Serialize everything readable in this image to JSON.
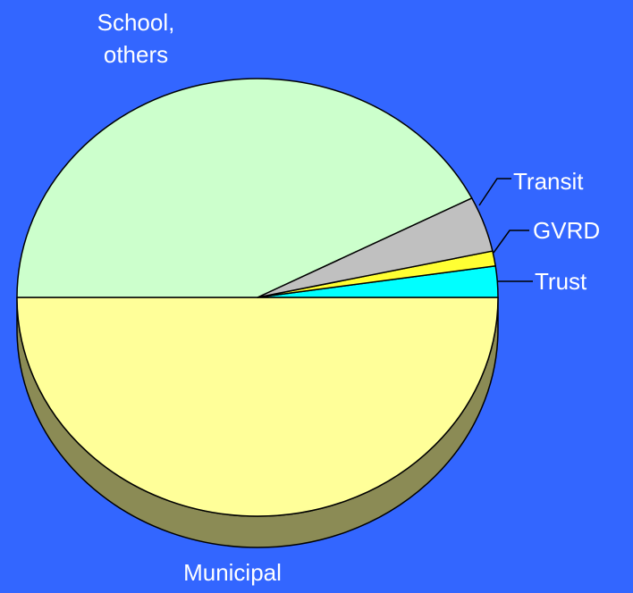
{
  "chart_data": {
    "type": "pie",
    "style": "3d",
    "background": "#3366ff",
    "categories": [
      "Municipal",
      "School, others",
      "Transit",
      "GVRD",
      "Trust"
    ],
    "values": [
      50.0,
      42.5,
      4.1,
      1.1,
      2.3
    ],
    "colors": [
      "#ffff99",
      "#ccffcc",
      "#c0c0c0",
      "#ffff33",
      "#00ffff"
    ],
    "labels": [
      {
        "category": "Municipal",
        "lines": [
          "Municipal"
        ]
      },
      {
        "category": "School, others",
        "lines": [
          "School,",
          "others"
        ]
      },
      {
        "category": "Transit",
        "lines": [
          "Transit"
        ]
      },
      {
        "category": "GVRD",
        "lines": [
          "GVRD"
        ]
      },
      {
        "category": "Trust",
        "lines": [
          "Trust"
        ]
      }
    ],
    "side_color": "#8b8b55",
    "label_color": "#ffffff",
    "outline_color": "#000000"
  }
}
